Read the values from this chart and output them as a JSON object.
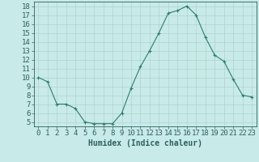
{
  "x": [
    0,
    1,
    2,
    3,
    4,
    5,
    6,
    7,
    8,
    9,
    10,
    11,
    12,
    13,
    14,
    15,
    16,
    17,
    18,
    19,
    20,
    21,
    22,
    23
  ],
  "y": [
    10,
    9.5,
    7,
    7,
    6.5,
    5,
    4.8,
    4.8,
    4.8,
    6,
    8.8,
    11.2,
    13,
    15,
    17.2,
    17.5,
    18,
    17,
    14.5,
    12.5,
    11.8,
    9.8,
    8,
    7.8
  ],
  "line_color": "#2e7d6e",
  "marker": "+",
  "marker_color": "#2e7d6e",
  "bg_color": "#c8eae8",
  "grid_color": "#b0d4d0",
  "axis_color": "#2e6060",
  "xlabel": "Humidex (Indice chaleur)",
  "xlim": [
    -0.5,
    23.5
  ],
  "ylim": [
    4.5,
    18.5
  ],
  "yticks": [
    5,
    6,
    7,
    8,
    9,
    10,
    11,
    12,
    13,
    14,
    15,
    16,
    17,
    18
  ],
  "xticks": [
    0,
    1,
    2,
    3,
    4,
    5,
    6,
    7,
    8,
    9,
    10,
    11,
    12,
    13,
    14,
    15,
    16,
    17,
    18,
    19,
    20,
    21,
    22,
    23
  ],
  "label_fontsize": 7,
  "tick_fontsize": 6.5
}
